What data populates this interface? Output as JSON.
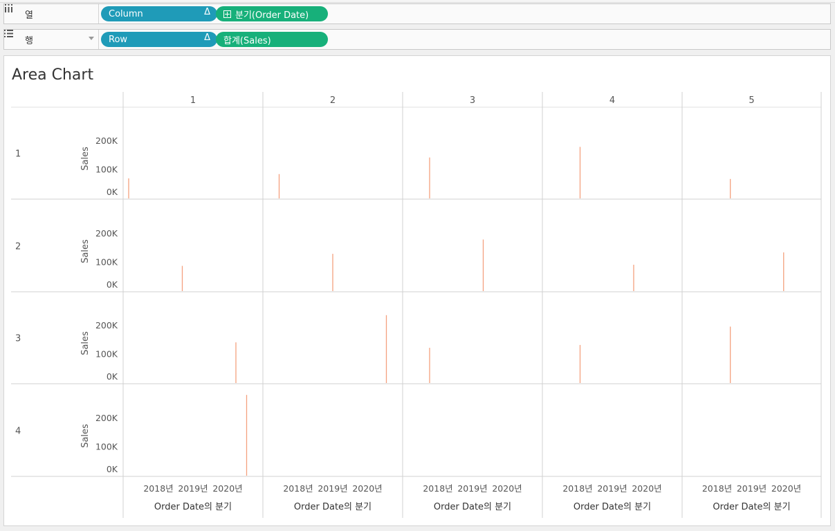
{
  "shelves": {
    "columns": {
      "label": "열",
      "icon": "columns-icon",
      "pills": [
        {
          "label": "Column",
          "marker": "Δ"
        },
        {
          "label": "분기(Order Date)",
          "marker": "⊞"
        }
      ]
    },
    "rows": {
      "label": "행",
      "icon": "rows-icon",
      "pills": [
        {
          "label": "Row",
          "marker": "Δ"
        },
        {
          "label": "합계(Sales)"
        }
      ]
    }
  },
  "worksheet": {
    "title": "Area Chart"
  },
  "chart_data": {
    "type": "area",
    "title": "Area Chart",
    "column_headers": [
      "1",
      "2",
      "3",
      "4",
      "5"
    ],
    "row_headers": [
      "1",
      "2",
      "3",
      "4"
    ],
    "ylabel": "Sales",
    "xlabel": "Order Date의 분기",
    "x_ticks": [
      "2018년",
      "2019년",
      "2020년"
    ],
    "y_ticks": [
      "0K",
      "100K",
      "200K"
    ],
    "ylim": [
      0,
      280000
    ],
    "xlim": [
      0,
      12
    ],
    "mark_color": "#f4a07e",
    "cells": [
      {
        "row": 1,
        "col": 1,
        "quarter_index": 0,
        "sales": 70000
      },
      {
        "row": 1,
        "col": 2,
        "quarter_index": 1,
        "sales": 85000
      },
      {
        "row": 1,
        "col": 3,
        "quarter_index": 2,
        "sales": 143000
      },
      {
        "row": 1,
        "col": 4,
        "quarter_index": 3,
        "sales": 180000
      },
      {
        "row": 1,
        "col": 5,
        "quarter_index": 4,
        "sales": 68000
      },
      {
        "row": 2,
        "col": 1,
        "quarter_index": 5,
        "sales": 88000
      },
      {
        "row": 2,
        "col": 2,
        "quarter_index": 6,
        "sales": 130000
      },
      {
        "row": 2,
        "col": 3,
        "quarter_index": 7,
        "sales": 180000
      },
      {
        "row": 2,
        "col": 4,
        "quarter_index": 8,
        "sales": 92000
      },
      {
        "row": 2,
        "col": 5,
        "quarter_index": 9,
        "sales": 135000
      },
      {
        "row": 3,
        "col": 1,
        "quarter_index": 10,
        "sales": 142000
      },
      {
        "row": 3,
        "col": 2,
        "quarter_index": 11,
        "sales": 237000
      },
      {
        "row": 3,
        "col": 3,
        "quarter_index": 2,
        "sales": 123000
      },
      {
        "row": 3,
        "col": 4,
        "quarter_index": 3,
        "sales": 133000
      },
      {
        "row": 3,
        "col": 5,
        "quarter_index": 4,
        "sales": 197000
      },
      {
        "row": 4,
        "col": 1,
        "quarter_index": 11,
        "sales": 282000
      }
    ]
  }
}
